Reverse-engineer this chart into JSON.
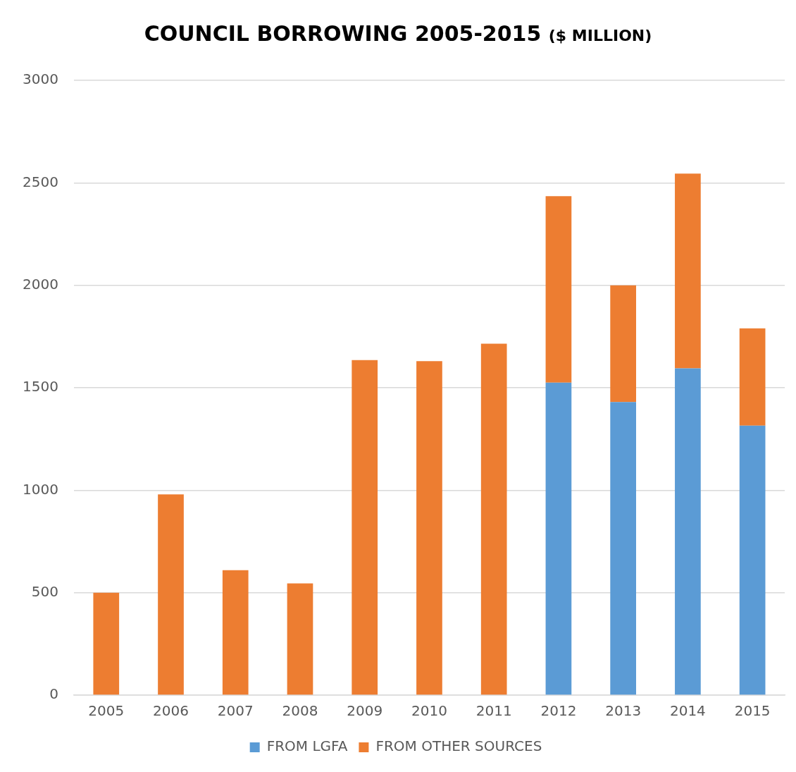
{
  "chart_data": {
    "type": "bar",
    "title": "COUNCIL BORROWING 2005-2015",
    "subtitle": "($ MILLION)",
    "categories": [
      "2005",
      "2006",
      "2007",
      "2008",
      "2009",
      "2010",
      "2011",
      "2012",
      "2013",
      "2014",
      "2015"
    ],
    "stacked": true,
    "series": [
      {
        "name": "FROM LGFA",
        "color": "#5b9bd5",
        "values": [
          null,
          null,
          null,
          null,
          null,
          null,
          null,
          1525,
          1430,
          1595,
          1315
        ]
      },
      {
        "name": "FROM OTHER SOURCES",
        "color": "#ed7d31",
        "values": [
          500,
          980,
          610,
          545,
          1635,
          1630,
          1715,
          910,
          570,
          950,
          475
        ]
      }
    ],
    "ylim": [
      0,
      3000
    ],
    "yticks": [
      0,
      500,
      1000,
      1500,
      2000,
      2500,
      3000
    ],
    "grid": "y",
    "legend": "bottom"
  }
}
